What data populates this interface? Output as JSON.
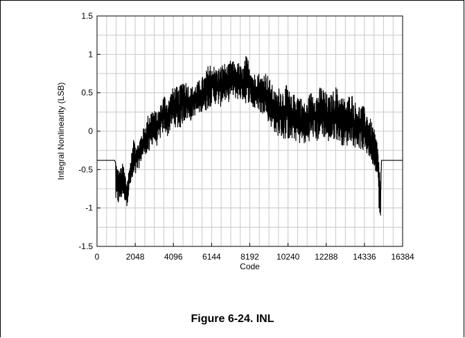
{
  "figure": {
    "caption": "Figure 6-24. INL"
  },
  "chart_data": {
    "type": "line",
    "title": "",
    "xlabel": "Code",
    "ylabel": "Integral Nonlinearity (LSB)",
    "xlim": [
      0,
      16384
    ],
    "ylim": [
      -1.5,
      1.5
    ],
    "x_ticks": [
      0,
      2048,
      4096,
      6144,
      8192,
      10240,
      12288,
      14336,
      16384
    ],
    "y_ticks": [
      -1.5,
      -1,
      -0.5,
      0,
      0.5,
      1,
      1.5
    ],
    "y_tick_labels": [
      "-1.5",
      "-1",
      "-0.5",
      "0",
      "0.5",
      "1",
      "1.5"
    ],
    "grid": true,
    "line_color": "#000000",
    "grid_color": "#c8c8c8",
    "series": [
      {
        "name": "",
        "x": [
          0,
          950,
          1000,
          1100,
          1200,
          1400,
          1600,
          1800,
          2000,
          2200,
          2400,
          2600,
          2800,
          3000,
          3200,
          3400,
          3600,
          3800,
          4000,
          4200,
          4400,
          4600,
          4800,
          5000,
          5200,
          5400,
          5600,
          5800,
          6000,
          6200,
          6400,
          6600,
          6800,
          7000,
          7200,
          7400,
          7600,
          7800,
          8000,
          8200,
          8400,
          8600,
          8800,
          9000,
          9200,
          9400,
          9600,
          9800,
          10000,
          10200,
          10400,
          10600,
          10800,
          11000,
          11200,
          11400,
          11600,
          11800,
          12000,
          12200,
          12400,
          12600,
          12800,
          13000,
          13200,
          13400,
          13600,
          13800,
          14000,
          14200,
          14400,
          14600,
          14800,
          15000,
          15100,
          15150,
          15200,
          15250,
          15300,
          16384
        ],
        "upper": [
          -0.38,
          -0.38,
          -0.32,
          -0.45,
          -0.5,
          -0.4,
          -0.65,
          -0.35,
          -0.05,
          -0.15,
          0.0,
          0.1,
          0.28,
          0.3,
          0.25,
          0.35,
          0.5,
          0.4,
          0.55,
          0.6,
          0.55,
          0.72,
          0.65,
          0.58,
          0.6,
          0.65,
          0.7,
          0.75,
          0.9,
          0.88,
          0.82,
          0.85,
          0.9,
          0.85,
          0.95,
          0.88,
          0.9,
          0.82,
          1.0,
          0.9,
          0.75,
          0.8,
          0.72,
          0.8,
          0.72,
          0.6,
          0.5,
          0.6,
          0.55,
          0.62,
          0.45,
          0.5,
          0.52,
          0.42,
          0.35,
          0.5,
          0.55,
          0.5,
          0.6,
          0.55,
          0.45,
          0.5,
          0.6,
          0.5,
          0.45,
          0.4,
          0.55,
          0.4,
          0.35,
          0.35,
          0.3,
          0.2,
          0.08,
          -0.1,
          -0.3,
          -0.45,
          -0.7,
          -0.38,
          -0.38,
          -0.38
        ],
        "lower": [
          -0.38,
          -0.38,
          -0.95,
          -0.98,
          -0.95,
          -0.85,
          -0.98,
          -0.72,
          -0.65,
          -0.52,
          -0.38,
          -0.3,
          -0.32,
          -0.15,
          -0.2,
          -0.1,
          0.0,
          -0.08,
          0.05,
          0.05,
          0.0,
          0.1,
          0.15,
          0.12,
          0.2,
          0.2,
          0.25,
          0.25,
          0.3,
          0.35,
          0.35,
          0.3,
          0.4,
          0.35,
          0.45,
          0.42,
          0.4,
          0.4,
          0.35,
          0.38,
          0.25,
          0.3,
          0.2,
          0.25,
          0.1,
          0.02,
          -0.05,
          -0.08,
          -0.12,
          -0.1,
          -0.15,
          -0.12,
          -0.18,
          -0.15,
          -0.2,
          -0.12,
          -0.1,
          -0.15,
          -0.05,
          -0.1,
          -0.15,
          -0.15,
          -0.1,
          -0.15,
          -0.2,
          -0.2,
          -0.12,
          -0.22,
          -0.22,
          -0.25,
          -0.3,
          -0.35,
          -0.45,
          -0.55,
          -0.85,
          -1.3,
          -1.2,
          -0.38,
          -0.38,
          -0.38
        ]
      }
    ]
  }
}
